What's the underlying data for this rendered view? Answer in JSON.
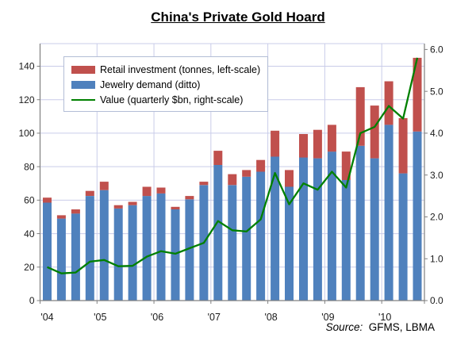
{
  "title": "China's Private Gold Hoard",
  "source": {
    "prefix": "Source:",
    "text": "GFMS, LBMA"
  },
  "colors": {
    "jewelry_bar": "#4F81BD",
    "retail_bar": "#C0504D",
    "value_line": "#008000",
    "gridline": "#C9CCE9",
    "axis": "#808080",
    "tick_text": "#1A1A1A",
    "legend_border": "#B3BDD6"
  },
  "chart_data": {
    "type": "bar+line",
    "title": "China's Private Gold Hoard",
    "x": [
      "2004 Q1",
      "2004 Q2",
      "2004 Q3",
      "2004 Q4",
      "2005 Q1",
      "2005 Q2",
      "2005 Q3",
      "2005 Q4",
      "2006 Q1",
      "2006 Q2",
      "2006 Q3",
      "2006 Q4",
      "2007 Q1",
      "2007 Q2",
      "2007 Q3",
      "2007 Q4",
      "2008 Q1",
      "2008 Q2",
      "2008 Q3",
      "2008 Q4",
      "2009 Q1",
      "2009 Q2",
      "2009 Q3",
      "2009 Q4",
      "2010 Q1",
      "2010 Q2",
      "2010 Q3"
    ],
    "x_year_labels": [
      "'04",
      "'05",
      "'06",
      "'07",
      "'08",
      "'09",
      "'10"
    ],
    "series": [
      {
        "name": "Retail investment (tonnes, left-scale)",
        "type": "bar",
        "axis": "left",
        "stack": "tonnes",
        "stack_level": 1,
        "color": "#C0504D",
        "values": [
          3,
          2,
          2.5,
          3,
          5,
          2,
          2,
          5.5,
          3.5,
          1.5,
          2,
          2,
          8.5,
          6.5,
          4,
          7,
          15.5,
          10,
          14,
          17,
          16,
          17,
          35,
          31.5,
          26,
          33,
          44
        ]
      },
      {
        "name": "Jewelry demand (ditto)",
        "type": "bar",
        "axis": "left",
        "stack": "tonnes",
        "stack_level": 0,
        "color": "#4F81BD",
        "values": [
          58.5,
          49,
          52,
          62.5,
          66,
          55,
          57,
          62.5,
          64,
          54.5,
          60.5,
          69,
          81,
          69,
          74,
          77,
          86,
          68,
          85.5,
          85,
          89,
          72,
          92.5,
          85,
          105,
          76,
          101
        ]
      },
      {
        "name": "Value (quarterly $bn, right-scale)",
        "type": "line",
        "axis": "right",
        "color": "#008000",
        "values": [
          0.8,
          0.65,
          0.67,
          0.93,
          0.97,
          0.82,
          0.83,
          1.05,
          1.18,
          1.12,
          1.25,
          1.38,
          1.9,
          1.68,
          1.65,
          1.94,
          3.05,
          2.3,
          2.8,
          2.65,
          3.08,
          2.7,
          4.0,
          4.15,
          4.65,
          4.35,
          5.8
        ]
      }
    ],
    "left_axis": {
      "ticks": [
        0,
        20,
        40,
        60,
        80,
        100,
        120,
        140
      ],
      "range": [
        0,
        153.5
      ]
    },
    "right_axis": {
      "ticks": [
        0,
        1,
        2,
        3,
        4,
        5,
        6
      ],
      "tick_labels": [
        "0.0",
        "1.0",
        "2.0",
        "3.0",
        "4.0",
        "5.0",
        "6.0"
      ],
      "range": [
        0,
        6.14
      ]
    },
    "grid": {
      "horizontal": true,
      "vertical_year_boundaries": true
    },
    "legend_position": "top-left-inside"
  }
}
